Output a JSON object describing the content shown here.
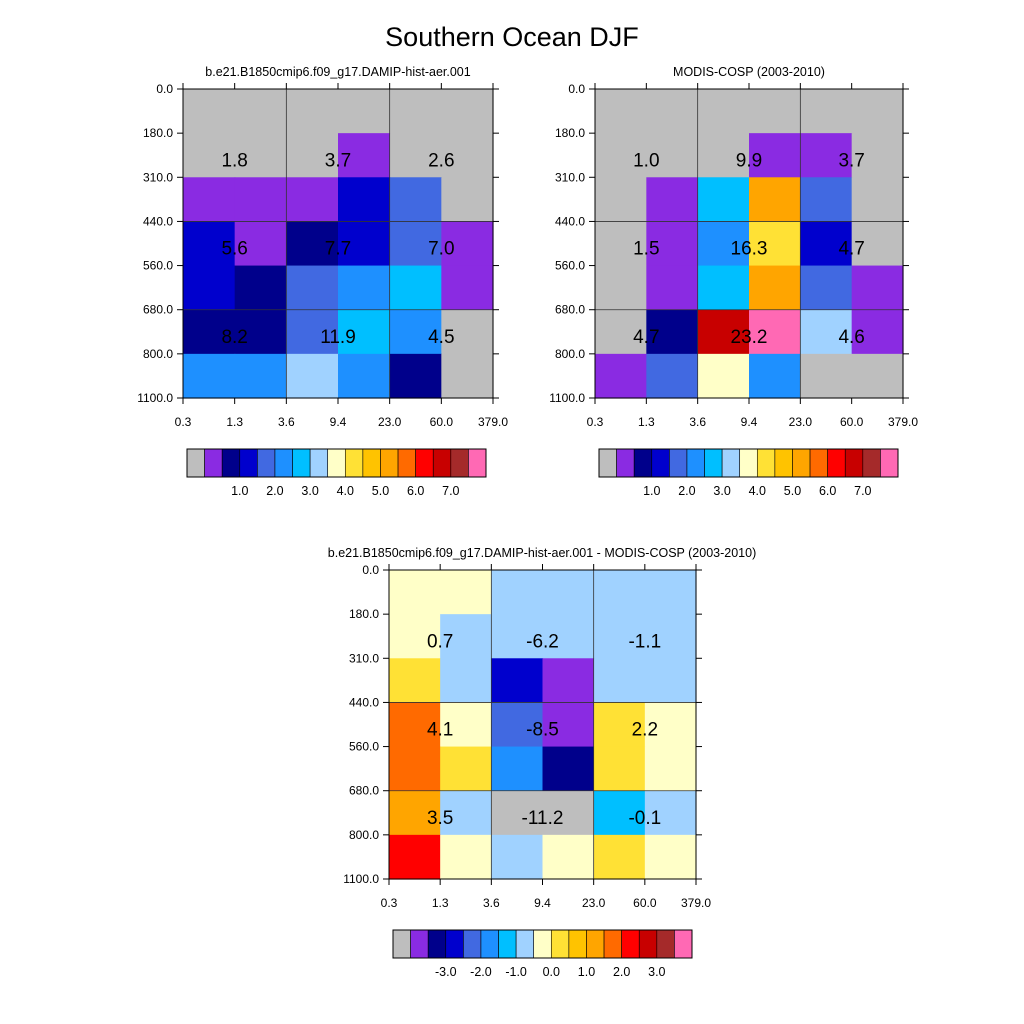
{
  "figure_title": "Southern Ocean DJF",
  "chart_data": [
    {
      "type": "heatmap",
      "title": "b.e21.B1850cmip6.f09_g17.DAMIP-hist-aer.001",
      "x_tick_labels": [
        "0.3",
        "1.3",
        "3.6",
        "9.4",
        "23.0",
        "60.0",
        "379.0"
      ],
      "y_tick_labels": [
        "0.0",
        "180.0",
        "310.0",
        "440.0",
        "560.0",
        "680.0",
        "800.0",
        "1100.0"
      ],
      "cell_colors": [
        [
          "#bebebe",
          "#bebebe",
          "#bebebe",
          "#bebebe",
          "#bebebe",
          "#bebebe"
        ],
        [
          "#bebebe",
          "#bebebe",
          "#bebebe",
          "#8a2be2",
          "#bebebe",
          "#bebebe"
        ],
        [
          "#8a2be2",
          "#8a2be2",
          "#8a2be2",
          "#0000cd",
          "#4169e1",
          "#bebebe"
        ],
        [
          "#0000cd",
          "#8a2be2",
          "#00008b",
          "#0000cd",
          "#4169e1",
          "#8a2be2"
        ],
        [
          "#0000cd",
          "#00008b",
          "#4169e1",
          "#1e90ff",
          "#00bfff",
          "#8a2be2"
        ],
        [
          "#00008b",
          "#00008b",
          "#4169e1",
          "#00bfff",
          "#1e90ff",
          "#bebebe"
        ],
        [
          "#1e90ff",
          "#1e90ff",
          "#a0d2ff",
          "#1e90ff",
          "#00008b",
          "#bebebe"
        ]
      ],
      "block_values": [
        [
          "1.8",
          "3.7",
          "2.6"
        ],
        [
          "5.6",
          "7.7",
          "7.0"
        ],
        [
          "8.2",
          "11.9",
          "4.5"
        ]
      ],
      "colorbar": {
        "colors": [
          "#bebebe",
          "#8a2be2",
          "#00008b",
          "#0000cd",
          "#4169e1",
          "#1e90ff",
          "#00bfff",
          "#a0d2ff",
          "#ffffc8",
          "#ffe135",
          "#ffc300",
          "#ffa500",
          "#ff6a00",
          "#ff0000",
          "#c80000",
          "#a52a2a",
          "#ff69b4"
        ],
        "labels": [
          "1.0",
          "2.0",
          "3.0",
          "4.0",
          "5.0",
          "6.0",
          "7.0"
        ]
      }
    },
    {
      "type": "heatmap",
      "title": "MODIS-COSP (2003-2010)",
      "x_tick_labels": [
        "0.3",
        "1.3",
        "3.6",
        "9.4",
        "23.0",
        "60.0",
        "379.0"
      ],
      "y_tick_labels": [
        "0.0",
        "180.0",
        "310.0",
        "440.0",
        "560.0",
        "680.0",
        "800.0",
        "1100.0"
      ],
      "cell_colors": [
        [
          "#bebebe",
          "#bebebe",
          "#bebebe",
          "#bebebe",
          "#bebebe",
          "#bebebe"
        ],
        [
          "#bebebe",
          "#bebebe",
          "#bebebe",
          "#8a2be2",
          "#8a2be2",
          "#bebebe"
        ],
        [
          "#bebebe",
          "#8a2be2",
          "#00bfff",
          "#ffa500",
          "#4169e1",
          "#bebebe"
        ],
        [
          "#bebebe",
          "#8a2be2",
          "#1e90ff",
          "#ffe135",
          "#0000cd",
          "#bebebe"
        ],
        [
          "#bebebe",
          "#8a2be2",
          "#00bfff",
          "#ffa500",
          "#4169e1",
          "#8a2be2"
        ],
        [
          "#bebebe",
          "#00008b",
          "#c80000",
          "#ff69b4",
          "#a0d2ff",
          "#8a2be2"
        ],
        [
          "#8a2be2",
          "#4169e1",
          "#ffffc8",
          "#1e90ff",
          "#bebebe",
          "#bebebe"
        ]
      ],
      "block_values": [
        [
          "1.0",
          "9.9",
          "3.7"
        ],
        [
          "1.5",
          "16.3",
          "4.7"
        ],
        [
          "4.7",
          "23.2",
          "4.6"
        ]
      ],
      "colorbar": {
        "colors": [
          "#bebebe",
          "#8a2be2",
          "#00008b",
          "#0000cd",
          "#4169e1",
          "#1e90ff",
          "#00bfff",
          "#a0d2ff",
          "#ffffc8",
          "#ffe135",
          "#ffc300",
          "#ffa500",
          "#ff6a00",
          "#ff0000",
          "#c80000",
          "#a52a2a",
          "#ff69b4"
        ],
        "labels": [
          "1.0",
          "2.0",
          "3.0",
          "4.0",
          "5.0",
          "6.0",
          "7.0"
        ]
      }
    },
    {
      "type": "heatmap",
      "title": "b.e21.B1850cmip6.f09_g17.DAMIP-hist-aer.001 - MODIS-COSP (2003-2010)",
      "x_tick_labels": [
        "0.3",
        "1.3",
        "3.6",
        "9.4",
        "23.0",
        "60.0",
        "379.0"
      ],
      "y_tick_labels": [
        "0.0",
        "180.0",
        "310.0",
        "440.0",
        "560.0",
        "680.0",
        "800.0",
        "1100.0"
      ],
      "cell_colors": [
        [
          "#ffffc8",
          "#ffffc8",
          "#a0d2ff",
          "#a0d2ff",
          "#a0d2ff",
          "#a0d2ff"
        ],
        [
          "#ffffc8",
          "#a0d2ff",
          "#a0d2ff",
          "#a0d2ff",
          "#a0d2ff",
          "#a0d2ff"
        ],
        [
          "#ffe135",
          "#a0d2ff",
          "#0000cd",
          "#8a2be2",
          "#a0d2ff",
          "#a0d2ff"
        ],
        [
          "#ff6a00",
          "#ffffc8",
          "#4169e1",
          "#8a2be2",
          "#ffe135",
          "#ffffc8"
        ],
        [
          "#ff6a00",
          "#ffe135",
          "#1e90ff",
          "#00008b",
          "#ffe135",
          "#ffffc8"
        ],
        [
          "#ffa500",
          "#a0d2ff",
          "#bebebe",
          "#bebebe",
          "#00bfff",
          "#a0d2ff"
        ],
        [
          "#ff0000",
          "#ffffc8",
          "#a0d2ff",
          "#ffffc8",
          "#ffe135",
          "#ffffc8"
        ]
      ],
      "block_values": [
        [
          "0.7",
          "-6.2",
          "-1.1"
        ],
        [
          "4.1",
          "-8.5",
          "2.2"
        ],
        [
          "3.5",
          "-11.2",
          "-0.1"
        ]
      ],
      "colorbar": {
        "colors": [
          "#bebebe",
          "#8a2be2",
          "#00008b",
          "#0000cd",
          "#4169e1",
          "#1e90ff",
          "#00bfff",
          "#a0d2ff",
          "#ffffc8",
          "#ffe135",
          "#ffc300",
          "#ffa500",
          "#ff6a00",
          "#ff0000",
          "#c80000",
          "#a52a2a",
          "#ff69b4"
        ],
        "labels": [
          "-3.0",
          "-2.0",
          "-1.0",
          "0.0",
          "1.0",
          "2.0",
          "3.0"
        ]
      }
    }
  ]
}
